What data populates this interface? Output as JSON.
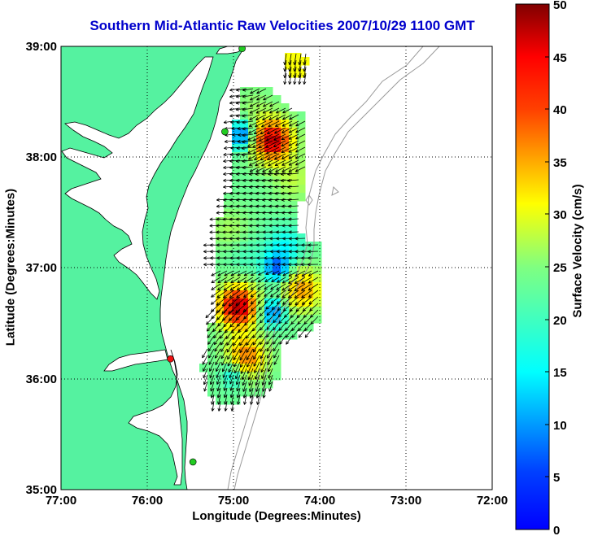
{
  "title": "Southern Mid-Atlantic Raw Velocities 2007/10/29 1100 GMT",
  "xlabel": "Longitude (Degrees:Minutes)",
  "ylabel": "Latitude (Degrees:Minutes)",
  "colorbar_label": "Surface Velocity (cm/s)",
  "x_ticks": [
    "77:00",
    "76:00",
    "75:00",
    "74:00",
    "73:00",
    "72:00"
  ],
  "y_ticks": [
    "39:00",
    "38:00",
    "37:00",
    "36:00",
    "35:00"
  ],
  "colorbar_ticks": [
    "50",
    "45",
    "40",
    "35",
    "30",
    "25",
    "20",
    "15",
    "10",
    "5",
    "0"
  ],
  "colors": {
    "land": "#55f2a0",
    "ocean": "#ffffff",
    "title": "#0000cc",
    "bathymetry": "#999999",
    "site_marker_active": "#22cc22",
    "site_marker_inactive": "#ee1111"
  },
  "map_extent": {
    "lon": [
      -77,
      -72
    ],
    "lat": [
      35,
      39
    ]
  },
  "color_scale": {
    "min": 0,
    "max": 50,
    "colormap": "jet"
  },
  "stations": [
    {
      "lon": -74.9,
      "lat": 38.98,
      "status": "active"
    },
    {
      "lon": -75.1,
      "lat": 38.23,
      "status": "active"
    },
    {
      "lon": -75.73,
      "lat": 36.18,
      "status": "inactive"
    },
    {
      "lon": -75.47,
      "lat": 35.25,
      "status": "active"
    }
  ],
  "chart_data": {
    "type": "heatmap",
    "title": "Southern Mid-Atlantic Raw Velocities 2007/10/29 1100 GMT",
    "xlabel": "Longitude (Degrees:Minutes)",
    "ylabel": "Latitude (Degrees:Minutes)",
    "xlim": [
      -77,
      -72
    ],
    "ylim": [
      35,
      39
    ],
    "clim": [
      0,
      50
    ],
    "grid": true,
    "hotspots": [
      {
        "lon": -74.55,
        "lat": 38.15,
        "speed": 47
      },
      {
        "lon": -74.95,
        "lat": 36.65,
        "speed": 48
      },
      {
        "lon": -74.85,
        "lat": 36.2,
        "speed": 38
      },
      {
        "lon": -74.2,
        "lat": 36.8,
        "speed": 36
      },
      {
        "lon": -74.2,
        "lat": 38.9,
        "speed": 31
      },
      {
        "lon": -74.3,
        "lat": 37.8,
        "speed": 28
      },
      {
        "lon": -74.75,
        "lat": 38.45,
        "speed": 26
      },
      {
        "lon": -75.05,
        "lat": 37.35,
        "speed": 27
      },
      {
        "lon": -74.85,
        "lat": 37.1,
        "speed": 22
      },
      {
        "lon": -74.4,
        "lat": 37.2,
        "speed": 19
      }
    ],
    "coldspots": [
      {
        "lon": -74.9,
        "lat": 38.2,
        "speed": 11
      },
      {
        "lon": -74.5,
        "lat": 37.0,
        "speed": 11
      },
      {
        "lon": -74.55,
        "lat": 36.6,
        "speed": 12
      },
      {
        "lon": -75.0,
        "lat": 36.05,
        "speed": 17
      }
    ],
    "flow_direction": "southwestward along shelf, turning southward south of 37N"
  }
}
